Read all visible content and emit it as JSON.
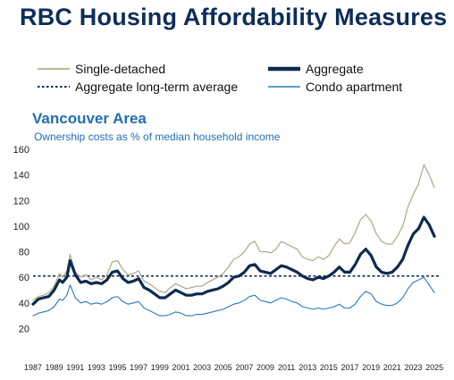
{
  "title": "RBC Housing Affordability Measures",
  "legend": {
    "single_detached": "Single-detached",
    "aggregate": "Aggregate",
    "long_term_average": "Aggregate long-term average",
    "condo": "Condo apartment"
  },
  "colors": {
    "title": "#0e2d5a",
    "single_detached": "#b2ad8d",
    "aggregate": "#0e2a52",
    "long_term_average": "#0e2a52",
    "condo": "#2a7bb8",
    "subtitle": "#1f6fb4"
  },
  "chart_data": {
    "type": "line",
    "region": "Vancouver Area",
    "description": "Ownership costs as % of median household income",
    "ylim": [
      0,
      160
    ],
    "yticks": [
      20,
      40,
      60,
      80,
      100,
      120,
      140,
      160
    ],
    "xlim": [
      1987,
      2025.5
    ],
    "xticks": [
      1987,
      1989,
      1991,
      1993,
      1995,
      1997,
      1999,
      2001,
      2003,
      2005,
      2007,
      2009,
      2011,
      2013,
      2015,
      2017,
      2019,
      2021,
      2023,
      2025
    ],
    "long_term_average": 61,
    "series": [
      {
        "name": "Single-detached",
        "x": [
          1987.0,
          1987.5,
          1988.0,
          1988.5,
          1989.0,
          1989.5,
          1989.8,
          1990.2,
          1990.5,
          1991.0,
          1991.5,
          1992.0,
          1992.5,
          1993.0,
          1993.5,
          1994.0,
          1994.5,
          1995.0,
          1995.5,
          1996.0,
          1996.5,
          1997.0,
          1997.5,
          1998.0,
          1998.5,
          1999.0,
          1999.5,
          2000.0,
          2000.5,
          2001.0,
          2001.5,
          2002.0,
          2002.5,
          2003.0,
          2003.5,
          2004.0,
          2004.5,
          2005.0,
          2005.5,
          2006.0,
          2006.5,
          2007.0,
          2007.5,
          2008.0,
          2008.5,
          2009.0,
          2009.5,
          2010.0,
          2010.5,
          2011.0,
          2011.5,
          2012.0,
          2012.5,
          2013.0,
          2013.5,
          2014.0,
          2014.5,
          2015.0,
          2015.5,
          2016.0,
          2016.5,
          2017.0,
          2017.5,
          2018.0,
          2018.5,
          2019.0,
          2019.5,
          2020.0,
          2020.5,
          2021.0,
          2021.5,
          2022.0,
          2022.5,
          2023.0,
          2023.5,
          2024.0,
          2024.5,
          2025.0
        ],
        "values": [
          42,
          45,
          46,
          48,
          53,
          63,
          60,
          65,
          78,
          64,
          60,
          62,
          58,
          60,
          58,
          62,
          72,
          73,
          66,
          62,
          63,
          65,
          57,
          55,
          52,
          49,
          48,
          52,
          55,
          53,
          51,
          52,
          53,
          53,
          56,
          58,
          60,
          63,
          68,
          74,
          76,
          80,
          86,
          88,
          80,
          80,
          79,
          82,
          88,
          86,
          84,
          82,
          76,
          74,
          73,
          76,
          74,
          77,
          84,
          90,
          86,
          87,
          95,
          105,
          109,
          104,
          94,
          88,
          86,
          86,
          92,
          100,
          115,
          125,
          133,
          148,
          140,
          130
        ]
      },
      {
        "name": "Aggregate",
        "x": [
          1987.0,
          1987.5,
          1988.0,
          1988.5,
          1989.0,
          1989.5,
          1989.8,
          1990.2,
          1990.5,
          1991.0,
          1991.5,
          1992.0,
          1992.5,
          1993.0,
          1993.5,
          1994.0,
          1994.5,
          1995.0,
          1995.5,
          1996.0,
          1996.5,
          1997.0,
          1997.5,
          1998.0,
          1998.5,
          1999.0,
          1999.5,
          2000.0,
          2000.5,
          2001.0,
          2001.5,
          2002.0,
          2002.5,
          2003.0,
          2003.5,
          2004.0,
          2004.5,
          2005.0,
          2005.5,
          2006.0,
          2006.5,
          2007.0,
          2007.5,
          2008.0,
          2008.5,
          2009.0,
          2009.5,
          2010.0,
          2010.5,
          2011.0,
          2011.5,
          2012.0,
          2012.5,
          2013.0,
          2013.5,
          2014.0,
          2014.5,
          2015.0,
          2015.5,
          2016.0,
          2016.5,
          2017.0,
          2017.5,
          2018.0,
          2018.5,
          2019.0,
          2019.5,
          2020.0,
          2020.5,
          2021.0,
          2021.5,
          2022.0,
          2022.5,
          2023.0,
          2023.5,
          2024.0,
          2024.5,
          2025.0
        ],
        "values": [
          39,
          43,
          44,
          45,
          50,
          58,
          56,
          60,
          73,
          62,
          56,
          57,
          55,
          56,
          55,
          58,
          64,
          65,
          59,
          56,
          57,
          59,
          52,
          50,
          47,
          44,
          44,
          47,
          50,
          48,
          46,
          46,
          47,
          47,
          49,
          50,
          51,
          53,
          56,
          60,
          61,
          64,
          69,
          70,
          65,
          64,
          63,
          66,
          69,
          68,
          66,
          64,
          61,
          59,
          58,
          60,
          59,
          61,
          64,
          68,
          64,
          64,
          70,
          78,
          82,
          77,
          68,
          64,
          63,
          64,
          68,
          74,
          85,
          94,
          98,
          107,
          101,
          92
        ]
      },
      {
        "name": "Condo apartment",
        "x": [
          1987.0,
          1987.5,
          1988.0,
          1988.5,
          1989.0,
          1989.5,
          1989.8,
          1990.2,
          1990.5,
          1991.0,
          1991.5,
          1992.0,
          1992.5,
          1993.0,
          1993.5,
          1994.0,
          1994.5,
          1995.0,
          1995.5,
          1996.0,
          1996.5,
          1997.0,
          1997.5,
          1998.0,
          1998.5,
          1999.0,
          1999.5,
          2000.0,
          2000.5,
          2001.0,
          2001.5,
          2002.0,
          2002.5,
          2003.0,
          2003.5,
          2004.0,
          2004.5,
          2005.0,
          2005.5,
          2006.0,
          2006.5,
          2007.0,
          2007.5,
          2008.0,
          2008.5,
          2009.0,
          2009.5,
          2010.0,
          2010.5,
          2011.0,
          2011.5,
          2012.0,
          2012.5,
          2013.0,
          2013.5,
          2014.0,
          2014.5,
          2015.0,
          2015.5,
          2016.0,
          2016.5,
          2017.0,
          2017.5,
          2018.0,
          2018.5,
          2019.0,
          2019.5,
          2020.0,
          2020.5,
          2021.0,
          2021.5,
          2022.0,
          2022.5,
          2023.0,
          2023.5,
          2024.0,
          2024.5,
          2025.0
        ],
        "values": [
          30,
          32,
          33,
          34,
          37,
          43,
          42,
          46,
          54,
          44,
          40,
          41,
          39,
          40,
          39,
          41,
          44,
          45,
          41,
          39,
          40,
          41,
          36,
          34,
          32,
          30,
          30,
          31,
          33,
          32,
          30,
          30,
          31,
          31,
          32,
          33,
          34,
          35,
          37,
          39,
          40,
          42,
          45,
          46,
          42,
          41,
          40,
          42,
          44,
          43,
          41,
          40,
          37,
          36,
          35,
          36,
          35,
          36,
          37,
          39,
          36,
          36,
          39,
          45,
          49,
          47,
          41,
          39,
          38,
          38,
          40,
          44,
          51,
          56,
          58,
          60,
          54,
          48
        ]
      }
    ]
  }
}
